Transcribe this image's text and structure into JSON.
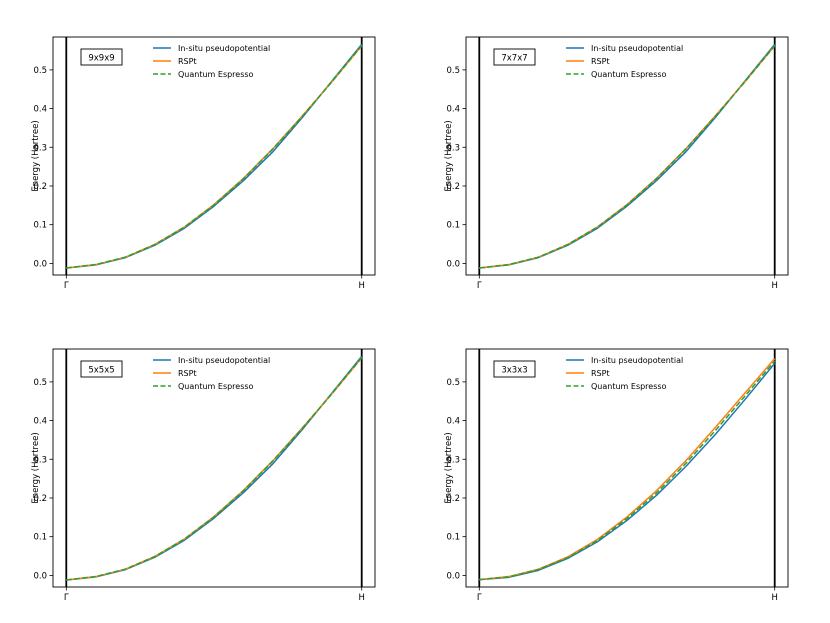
{
  "chart_data": [
    {
      "type": "line",
      "label_box": "9x9x9",
      "ylabel": "Energy (Hartree)",
      "xtick_labels": [
        "Γ",
        "H"
      ],
      "yticks": [
        0.0,
        0.1,
        0.2,
        0.3,
        0.4,
        0.5
      ],
      "ytick_labels": [
        "0.0",
        "0.1",
        "0.2",
        "0.3",
        "0.4",
        "0.5"
      ],
      "ylim": [
        -0.03,
        0.585
      ],
      "xlim": [
        -0.045,
        1.045
      ],
      "legend_position": "top-center",
      "series": [
        {
          "name": "In-situ pseudopotential",
          "color": "#1f77b4",
          "style": "solid",
          "x": [
            0,
            0.1,
            0.2,
            0.3,
            0.4,
            0.5,
            0.6,
            0.7,
            0.8,
            0.9,
            1.0
          ],
          "y": [
            -0.012,
            -0.004,
            0.015,
            0.047,
            0.091,
            0.148,
            0.214,
            0.289,
            0.378,
            0.472,
            0.566
          ]
        },
        {
          "name": "RSPt",
          "color": "#ff7f0e",
          "style": "solid",
          "x": [
            0,
            0.1,
            0.2,
            0.3,
            0.4,
            0.5,
            0.6,
            0.7,
            0.8,
            0.9,
            1.0
          ],
          "y": [
            -0.012,
            -0.003,
            0.016,
            0.049,
            0.094,
            0.152,
            0.22,
            0.297,
            0.382,
            0.47,
            0.562
          ]
        },
        {
          "name": "Quantum Espresso",
          "color": "#2ca02c",
          "style": "dashed",
          "x": [
            0,
            0.1,
            0.2,
            0.3,
            0.4,
            0.5,
            0.6,
            0.7,
            0.8,
            0.9,
            1.0
          ],
          "y": [
            -0.012,
            -0.003,
            0.016,
            0.049,
            0.094,
            0.151,
            0.219,
            0.296,
            0.381,
            0.47,
            0.563
          ]
        }
      ]
    },
    {
      "type": "line",
      "label_box": "7x7x7",
      "ylabel": "Energy (Hartree)",
      "xtick_labels": [
        "Γ",
        "H"
      ],
      "yticks": [
        0.0,
        0.1,
        0.2,
        0.3,
        0.4,
        0.5
      ],
      "ytick_labels": [
        "0.0",
        "0.1",
        "0.2",
        "0.3",
        "0.4",
        "0.5"
      ],
      "ylim": [
        -0.03,
        0.585
      ],
      "xlim": [
        -0.045,
        1.045
      ],
      "legend_position": "top-center",
      "series": [
        {
          "name": "In-situ pseudopotential",
          "color": "#1f77b4",
          "style": "solid",
          "x": [
            0,
            0.1,
            0.2,
            0.3,
            0.4,
            0.5,
            0.6,
            0.7,
            0.8,
            0.9,
            1.0
          ],
          "y": [
            -0.012,
            -0.004,
            0.015,
            0.047,
            0.091,
            0.148,
            0.214,
            0.289,
            0.378,
            0.472,
            0.566
          ]
        },
        {
          "name": "RSPt",
          "color": "#ff7f0e",
          "style": "solid",
          "x": [
            0,
            0.1,
            0.2,
            0.3,
            0.4,
            0.5,
            0.6,
            0.7,
            0.8,
            0.9,
            1.0
          ],
          "y": [
            -0.012,
            -0.003,
            0.016,
            0.049,
            0.094,
            0.152,
            0.22,
            0.297,
            0.382,
            0.47,
            0.562
          ]
        },
        {
          "name": "Quantum Espresso",
          "color": "#2ca02c",
          "style": "dashed",
          "x": [
            0,
            0.1,
            0.2,
            0.3,
            0.4,
            0.5,
            0.6,
            0.7,
            0.8,
            0.9,
            1.0
          ],
          "y": [
            -0.012,
            -0.003,
            0.016,
            0.049,
            0.094,
            0.151,
            0.219,
            0.296,
            0.381,
            0.47,
            0.563
          ]
        }
      ]
    },
    {
      "type": "line",
      "label_box": "5x5x5",
      "ylabel": "Energy (Hartree)",
      "xtick_labels": [
        "Γ",
        "H"
      ],
      "yticks": [
        0.0,
        0.1,
        0.2,
        0.3,
        0.4,
        0.5
      ],
      "ytick_labels": [
        "0.0",
        "0.1",
        "0.2",
        "0.3",
        "0.4",
        "0.5"
      ],
      "ylim": [
        -0.03,
        0.585
      ],
      "xlim": [
        -0.045,
        1.045
      ],
      "legend_position": "top-center",
      "series": [
        {
          "name": "In-situ pseudopotential",
          "color": "#1f77b4",
          "style": "solid",
          "x": [
            0,
            0.1,
            0.2,
            0.3,
            0.4,
            0.5,
            0.6,
            0.7,
            0.8,
            0.9,
            1.0
          ],
          "y": [
            -0.012,
            -0.004,
            0.015,
            0.047,
            0.091,
            0.148,
            0.214,
            0.289,
            0.378,
            0.472,
            0.566
          ]
        },
        {
          "name": "RSPt",
          "color": "#ff7f0e",
          "style": "solid",
          "x": [
            0,
            0.1,
            0.2,
            0.3,
            0.4,
            0.5,
            0.6,
            0.7,
            0.8,
            0.9,
            1.0
          ],
          "y": [
            -0.012,
            -0.003,
            0.016,
            0.049,
            0.094,
            0.152,
            0.22,
            0.297,
            0.382,
            0.47,
            0.562
          ]
        },
        {
          "name": "Quantum Espresso",
          "color": "#2ca02c",
          "style": "dashed",
          "x": [
            0,
            0.1,
            0.2,
            0.3,
            0.4,
            0.5,
            0.6,
            0.7,
            0.8,
            0.9,
            1.0
          ],
          "y": [
            -0.012,
            -0.003,
            0.016,
            0.049,
            0.094,
            0.151,
            0.219,
            0.296,
            0.381,
            0.47,
            0.563
          ]
        }
      ]
    },
    {
      "type": "line",
      "label_box": "3x3x3",
      "ylabel": "Energy (Hartree)",
      "xtick_labels": [
        "Γ",
        "H"
      ],
      "yticks": [
        0.0,
        0.1,
        0.2,
        0.3,
        0.4,
        0.5
      ],
      "ytick_labels": [
        "0.0",
        "0.1",
        "0.2",
        "0.3",
        "0.4",
        "0.5"
      ],
      "ylim": [
        -0.03,
        0.585
      ],
      "xlim": [
        -0.045,
        1.045
      ],
      "legend_position": "top-center",
      "series": [
        {
          "name": "In-situ pseudopotential",
          "color": "#1f77b4",
          "style": "solid",
          "x": [
            0,
            0.1,
            0.2,
            0.3,
            0.4,
            0.5,
            0.6,
            0.7,
            0.8,
            0.9,
            1.0
          ],
          "y": [
            -0.011,
            -0.005,
            0.013,
            0.044,
            0.087,
            0.142,
            0.207,
            0.282,
            0.365,
            0.455,
            0.548
          ]
        },
        {
          "name": "RSPt",
          "color": "#ff7f0e",
          "style": "solid",
          "x": [
            0,
            0.1,
            0.2,
            0.3,
            0.4,
            0.5,
            0.6,
            0.7,
            0.8,
            0.9,
            1.0
          ],
          "y": [
            -0.011,
            -0.003,
            0.016,
            0.048,
            0.093,
            0.151,
            0.219,
            0.297,
            0.383,
            0.472,
            0.56
          ]
        },
        {
          "name": "Quantum Espresso",
          "color": "#2ca02c",
          "style": "dashed",
          "x": [
            0,
            0.1,
            0.2,
            0.3,
            0.4,
            0.5,
            0.6,
            0.7,
            0.8,
            0.9,
            1.0
          ],
          "y": [
            -0.011,
            -0.004,
            0.015,
            0.046,
            0.09,
            0.147,
            0.213,
            0.29,
            0.375,
            0.464,
            0.554
          ]
        }
      ]
    }
  ]
}
